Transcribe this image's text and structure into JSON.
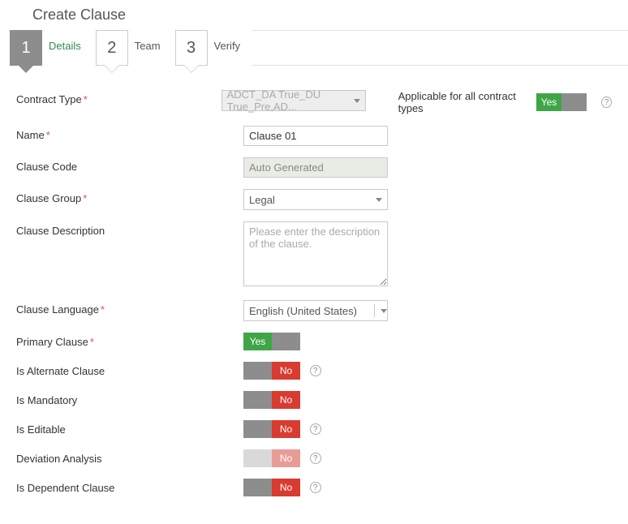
{
  "title": "Create Clause",
  "wizard": {
    "steps": [
      {
        "num": "1",
        "label": "Details",
        "active": true
      },
      {
        "num": "2",
        "label": "Team",
        "active": false
      },
      {
        "num": "3",
        "label": "Verify",
        "active": false
      }
    ]
  },
  "labels": {
    "contract_type": "Contract Type",
    "name": "Name",
    "clause_code": "Clause Code",
    "clause_group": "Clause Group",
    "clause_description": "Clause Description",
    "clause_language": "Clause Language",
    "primary_clause": "Primary Clause",
    "is_alternate": "Is Alternate Clause",
    "is_mandatory": "Is Mandatory",
    "is_editable": "Is Editable",
    "deviation_analysis": "Deviation Analysis",
    "is_dependent": "Is Dependent Clause",
    "applicable_all": "Applicable for all contract types"
  },
  "fields": {
    "contract_type": {
      "value": "ADCT_DA True_DU True_Pre,AD...",
      "disabled": true
    },
    "name": {
      "value": "Clause 01"
    },
    "clause_code": {
      "value": "Auto Generated",
      "disabled": true
    },
    "clause_group": {
      "value": "Legal"
    },
    "clause_description": {
      "placeholder": "Please enter the description of the clause."
    },
    "clause_language": {
      "value": "English (United States)"
    }
  },
  "toggles": {
    "applicable_all": {
      "value": "Yes",
      "yes": "Yes",
      "no": ""
    },
    "primary_clause": {
      "value": "Yes",
      "yes": "Yes",
      "no": ""
    },
    "is_alternate": {
      "value": "No",
      "yes": "",
      "no": "No",
      "help": true
    },
    "is_mandatory": {
      "value": "No",
      "yes": "",
      "no": "No"
    },
    "is_editable": {
      "value": "No",
      "yes": "",
      "no": "No",
      "help": true
    },
    "deviation": {
      "value": "No",
      "yes": "",
      "no": "No",
      "help": true,
      "disabled": true
    },
    "is_dependent": {
      "value": "No",
      "yes": "",
      "no": "No",
      "help": true
    }
  },
  "colors": {
    "accent_green": "#3fa648",
    "accent_red": "#d83b30",
    "grey": "#8d8d8d",
    "disabled_bg": "#e9ece5"
  }
}
